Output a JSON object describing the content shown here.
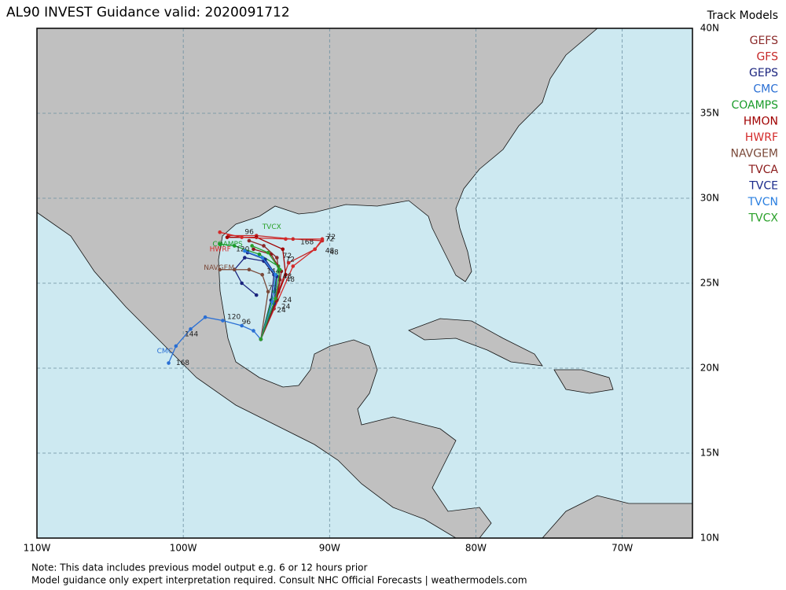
{
  "title": "AL90 INVEST Guidance valid: 2020091712",
  "legend_title": "Track Models",
  "map": {
    "lonlim": [
      -110,
      -65.2
    ],
    "latlim": [
      10,
      40
    ],
    "lon_ticks": [
      {
        "value": -110,
        "label": "110W"
      },
      {
        "value": -100,
        "label": "100W"
      },
      {
        "value": -90,
        "label": "90W"
      },
      {
        "value": -80,
        "label": "80W"
      },
      {
        "value": -70,
        "label": "70W"
      }
    ],
    "lat_ticks": [
      {
        "value": 40,
        "label": "40N"
      },
      {
        "value": 35,
        "label": "35N"
      },
      {
        "value": 30,
        "label": "30N"
      },
      {
        "value": 25,
        "label": "25N"
      },
      {
        "value": 20,
        "label": "20N"
      },
      {
        "value": 15,
        "label": "15N"
      },
      {
        "value": 10,
        "label": "10N"
      }
    ]
  },
  "tracks": [
    {
      "model": "GEFS",
      "color": "#8b2a2a",
      "lon": [
        -94.7,
        -93.8,
        -93.4,
        -93.6,
        -94.5,
        -95.5
      ],
      "lat": [
        21.7,
        23.5,
        25.2,
        26.5,
        27.2,
        27.5
      ],
      "labels": [
        {
          "text": 24,
          "lon": -93.6,
          "lat": 23.4
        },
        {
          "text": 48,
          "lon": -93.0,
          "lat": 25.2
        }
      ]
    },
    {
      "model": "GFS",
      "color": "#c62828",
      "lon": [
        -94.7,
        -93.5,
        -92.8,
        -91.0,
        -90.5,
        -92.5,
        -95.0,
        -96.9
      ],
      "lat": [
        21.7,
        24.5,
        26.2,
        27.0,
        27.5,
        27.6,
        27.8,
        27.8
      ],
      "labels": [
        {
          "text": 48,
          "lon": -90.3,
          "lat": 26.9
        },
        {
          "text": 72,
          "lon": -90.3,
          "lat": 27.6
        },
        {
          "text": 96,
          "lon": -95.8,
          "lat": 28.0
        },
        {
          "text": 168,
          "lon": -92.0,
          "lat": 27.4
        }
      ]
    },
    {
      "model": "GEPS",
      "color": "#1a237e",
      "lon": [
        -94.7,
        -94.0,
        -93.8,
        -94.5,
        -95.8,
        -96.5,
        -96.0,
        -95.0
      ],
      "lat": [
        21.7,
        24.0,
        25.5,
        26.3,
        26.5,
        25.8,
        25.0,
        24.3
      ],
      "labels": [
        {
          "text": 144,
          "lon": -94.3,
          "lat": 25.7
        }
      ]
    },
    {
      "model": "CMC",
      "color": "#2a6fd4",
      "lon": [
        -94.7,
        -95.2,
        -96.0,
        -97.3,
        -98.5,
        -99.5,
        -100.5,
        -101.0
      ],
      "lat": [
        21.7,
        22.2,
        22.5,
        22.8,
        23.0,
        22.3,
        21.3,
        20.3
      ],
      "labels": [
        {
          "text": 96,
          "lon": -96.0,
          "lat": 22.7
        },
        {
          "text": 120,
          "lon": -97.0,
          "lat": 23.0
        },
        {
          "text": 144,
          "lon": -99.9,
          "lat": 22.0
        },
        {
          "text": 168,
          "lon": -100.5,
          "lat": 20.3
        }
      ],
      "tag_lon": -101.8,
      "tag_lat": 21.0
    },
    {
      "model": "COAMPS",
      "color": "#1a9c2a",
      "lon": [
        -94.7,
        -93.8,
        -93.5,
        -94.8,
        -96.5,
        -97.5
      ],
      "lat": [
        21.7,
        24.5,
        26.0,
        26.7,
        27.2,
        27.3
      ],
      "labels": [
        {
          "text": 120,
          "lon": -96.4,
          "lat": 27.0
        }
      ],
      "tag_lon": -98.0,
      "tag_lat": 27.3
    },
    {
      "model": "HMON",
      "color": "#a00000",
      "lon": [
        -94.7,
        -93.0,
        -93.2,
        -95.0,
        -97.0
      ],
      "lat": [
        21.7,
        25.5,
        27.0,
        27.7,
        27.7
      ],
      "labels": [
        {
          "text": 72,
          "lon": -93.0,
          "lat": 26.4
        }
      ]
    },
    {
      "model": "HWRF",
      "color": "#d42a2a",
      "lon": [
        -94.7,
        -92.5,
        -91.0,
        -90.5,
        -93.0,
        -96.0,
        -97.5
      ],
      "lat": [
        21.7,
        26.0,
        27.0,
        27.6,
        27.6,
        27.7,
        28.0
      ],
      "labels": [
        {
          "text": 48,
          "lon": -90.0,
          "lat": 26.8
        },
        {
          "text": 72,
          "lon": -90.2,
          "lat": 27.7
        }
      ],
      "tag_lon": -98.2,
      "tag_lat": 27.0
    },
    {
      "model": "NAVGEM",
      "color": "#7b4a3a",
      "lon": [
        -94.7,
        -94.2,
        -94.6,
        -95.5,
        -96.5,
        -97.5
      ],
      "lat": [
        21.7,
        24.5,
        25.5,
        25.8,
        25.8,
        25.8
      ],
      "labels": [
        {
          "text": 72,
          "lon": -94.2,
          "lat": 24.7
        }
      ],
      "tag_lon": -98.6,
      "tag_lat": 25.9
    },
    {
      "model": "TVCA",
      "color": "#8b1a1a",
      "lon": [
        -94.7,
        -93.6,
        -93.3,
        -94.0,
        -95.2
      ],
      "lat": [
        21.7,
        24.0,
        25.7,
        26.7,
        27.0
      ],
      "labels": [
        {
          "text": 24,
          "lon": -93.2,
          "lat": 24.0
        }
      ]
    },
    {
      "model": "TVCE",
      "color": "#1a2a8b",
      "lon": [
        -94.7,
        -93.8,
        -93.6,
        -94.4,
        -95.6
      ],
      "lat": [
        21.7,
        23.8,
        25.4,
        26.4,
        26.8
      ],
      "labels": [
        {
          "text": 24,
          "lon": -93.3,
          "lat": 23.6
        }
      ]
    },
    {
      "model": "TVCN",
      "color": "#2a7fe0",
      "lon": [
        -94.7,
        -93.9,
        -93.7,
        -94.6,
        -95.8
      ],
      "lat": [
        21.7,
        23.9,
        25.5,
        26.5,
        26.9
      ],
      "labels": [
        {
          "text": 48,
          "lon": -93.2,
          "lat": 25.4
        }
      ]
    },
    {
      "model": "TVCX",
      "color": "#2aa02a",
      "lon": [
        -94.7,
        -93.7,
        -93.4,
        -94.2,
        -95.3
      ],
      "lat": [
        21.7,
        24.1,
        25.8,
        26.8,
        27.2
      ],
      "labels": [
        {
          "text": 72,
          "lon": -93.2,
          "lat": 26.6
        }
      ],
      "tag_lon": -94.6,
      "tag_lat": 28.3
    }
  ],
  "notes": [
    "Note: This data includes previous model output e.g. 6 or 12 hours prior",
    "Model guidance only expert interpretation required. Consult NHC Official Forecasts | weathermodels.com"
  ]
}
